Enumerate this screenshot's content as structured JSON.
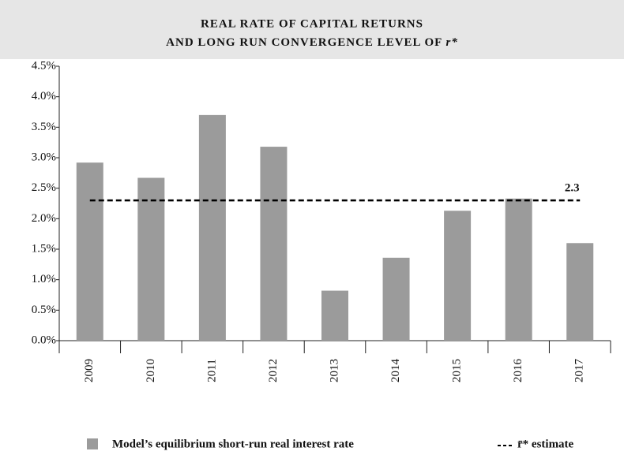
{
  "chart_data": {
    "type": "bar",
    "title": [
      "REAL RATE OF CAPITAL RETURNS",
      "AND LONG RUN CONVERGENCE LEVEL OF",
      "r*"
    ],
    "categories": [
      "2009",
      "2010",
      "2011",
      "2012",
      "2013",
      "2014",
      "2015",
      "2016",
      "2017"
    ],
    "series": [
      {
        "name": "Model’s equilibrium short-run real interest rate",
        "color": "#9b9b9b",
        "values": [
          2.92,
          2.67,
          3.7,
          3.18,
          0.82,
          1.36,
          2.13,
          2.33,
          1.6
        ]
      }
    ],
    "reference_line": {
      "name": "r̄* estimate",
      "value": 2.3,
      "label": "2.3",
      "color": "#000000"
    },
    "ylim": [
      0,
      4.5
    ],
    "yticks": [
      {
        "value": 0,
        "label": "0.0%"
      },
      {
        "value": 0.5,
        "label": "0.5%"
      },
      {
        "value": 1,
        "label": "1.0%"
      },
      {
        "value": 1.5,
        "label": "1.5%"
      },
      {
        "value": 2,
        "label": "2.0%"
      },
      {
        "value": 2.5,
        "label": "2.5%"
      },
      {
        "value": 3,
        "label": "3.0%"
      },
      {
        "value": 3.5,
        "label": "3.5%"
      },
      {
        "value": 4,
        "label": "4.0%"
      },
      {
        "value": 4.5,
        "label": "4.5%"
      }
    ],
    "grid": false
  }
}
